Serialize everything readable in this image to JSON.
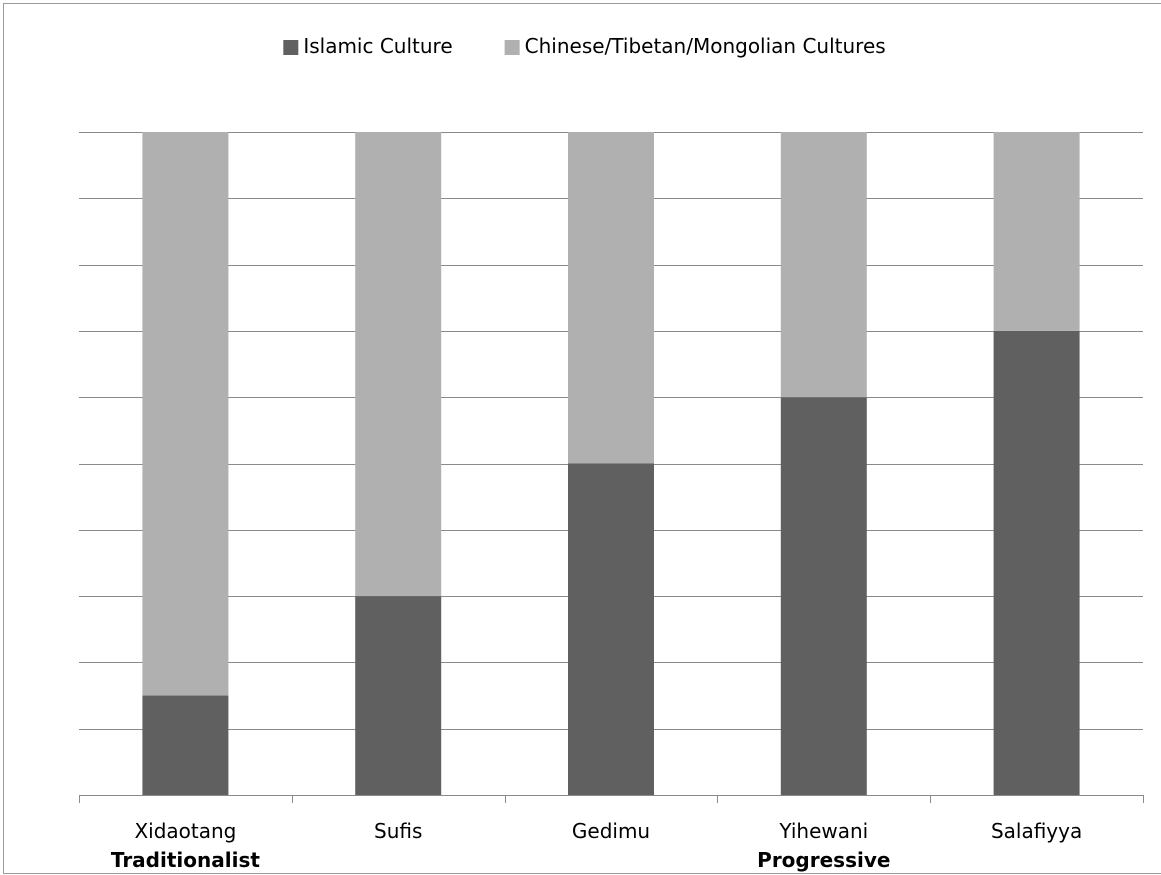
{
  "chart_data": {
    "type": "bar",
    "stacked": true,
    "normalized": true,
    "categories": [
      "Xidaotang",
      "Sufis",
      "Gedimu",
      "Yihewani",
      "Salafiyya"
    ],
    "series": [
      {
        "name": "Islamic Culture",
        "color": "#606060",
        "values": [
          15,
          30,
          50,
          60,
          70
        ]
      },
      {
        "name": "Chinese/Tibetan/Mongolian Cultures",
        "color": "#b0b0b0",
        "values": [
          85,
          70,
          50,
          40,
          30
        ]
      }
    ],
    "ylim": [
      0,
      100
    ],
    "y_gridline_step": 10,
    "y_tick_labels_shown": false,
    "grid": true,
    "legend_position": "top",
    "group_labels": [
      {
        "text": "Traditionalist",
        "under_category": "Xidaotang"
      },
      {
        "text": "Progressive",
        "under_category": "Yihewani"
      }
    ]
  },
  "colors": {
    "gridline": "#8a8a8a",
    "axis": "#8a8a8a",
    "frame": "#9a9a9a"
  }
}
